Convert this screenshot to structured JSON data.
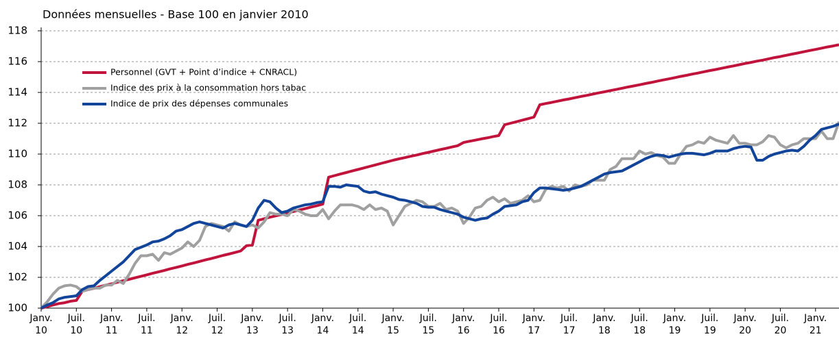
{
  "chart_data": {
    "type": "line",
    "title": "Données mensuelles - Base 100 en janvier 2010",
    "categories": [
      "Janv.\n10",
      null,
      null,
      null,
      null,
      null,
      "Juil.\n10",
      null,
      null,
      null,
      null,
      null,
      "Janv.\n11",
      null,
      null,
      null,
      null,
      null,
      "Juil.\n11",
      null,
      null,
      null,
      null,
      null,
      "Janv.\n12",
      null,
      null,
      null,
      null,
      null,
      "Juil.\n12",
      null,
      null,
      null,
      null,
      null,
      "Janv.\n13",
      null,
      null,
      null,
      null,
      null,
      "Juil.\n13",
      null,
      null,
      null,
      null,
      null,
      "Janv.\n14",
      null,
      null,
      null,
      null,
      null,
      "Juil.\n14",
      null,
      null,
      null,
      null,
      null,
      "Janv.\n15",
      null,
      null,
      null,
      null,
      null,
      "Juil.\n15",
      null,
      null,
      null,
      null,
      null,
      "Janv.\n16",
      null,
      null,
      null,
      null,
      null,
      "Juil.\n16",
      null,
      null,
      null,
      null,
      null,
      "Janv.\n17",
      null,
      null,
      null,
      null,
      null,
      "Juil.\n17",
      null,
      null,
      null,
      null,
      null,
      "Janv.\n18",
      null,
      null,
      null,
      null,
      null,
      "Juil.\n18",
      null,
      null,
      null,
      null,
      null,
      "Janv.\n19",
      null,
      null,
      null,
      null,
      null,
      "Juil.\n19",
      null,
      null,
      null,
      null,
      null,
      "Janv.\n20",
      null,
      null,
      null,
      null,
      null,
      "Juil.\n20",
      null,
      null,
      null,
      null,
      null,
      "Janv.\n21",
      null,
      null,
      null,
      null
    ],
    "series": [
      {
        "name": "Personnel (GVT + Point d’indice + CNRACL)",
        "color": "#c0143c",
        "values": [
          100.0,
          100.1,
          100.2,
          100.3,
          100.35,
          100.45,
          100.5,
          101.1,
          101.2,
          101.29,
          101.39,
          101.49,
          101.58,
          101.68,
          101.78,
          101.87,
          101.97,
          102.06,
          102.16,
          102.26,
          102.35,
          102.45,
          102.55,
          102.64,
          102.74,
          102.84,
          102.93,
          103.03,
          103.13,
          103.22,
          103.32,
          103.42,
          103.51,
          103.61,
          103.71,
          104.05,
          104.1,
          105.7,
          105.8,
          105.9,
          105.99,
          106.08,
          106.18,
          106.27,
          106.37,
          106.46,
          106.56,
          106.65,
          106.75,
          108.5,
          108.6,
          108.7,
          108.8,
          108.9,
          109.0,
          109.1,
          109.2,
          109.3,
          109.4,
          109.5,
          109.6,
          109.69,
          109.77,
          109.86,
          109.94,
          110.03,
          110.11,
          110.2,
          110.29,
          110.37,
          110.46,
          110.54,
          110.75,
          110.83,
          110.9,
          110.98,
          111.05,
          111.13,
          111.2,
          111.9,
          112.0,
          112.1,
          112.2,
          112.3,
          112.4,
          113.2,
          113.28,
          113.35,
          113.43,
          113.51,
          113.58,
          113.66,
          113.74,
          113.81,
          113.89,
          113.97,
          114.04,
          114.12,
          114.19,
          114.27,
          114.35,
          114.42,
          114.5,
          114.58,
          114.65,
          114.73,
          114.81,
          114.88,
          114.96,
          115.04,
          115.11,
          115.19,
          115.26,
          115.34,
          115.42,
          115.49,
          115.57,
          115.65,
          115.72,
          115.8,
          115.88,
          115.95,
          116.03,
          116.1,
          116.18,
          116.26,
          116.33,
          116.41,
          116.49,
          116.56,
          116.64,
          116.72,
          116.79,
          116.87,
          116.95,
          117.02,
          117.1
        ]
      },
      {
        "name": "Indice des prix à la consommation hors tabac",
        "color": "#a0a0a0",
        "values": [
          100.0,
          100.4,
          100.9,
          101.3,
          101.45,
          101.5,
          101.4,
          101.1,
          101.2,
          101.3,
          101.3,
          101.5,
          101.5,
          101.8,
          101.6,
          102.2,
          102.9,
          103.4,
          103.4,
          103.5,
          103.1,
          103.6,
          103.5,
          103.7,
          103.9,
          104.3,
          104.0,
          104.4,
          105.3,
          105.5,
          105.4,
          105.3,
          105.0,
          105.6,
          105.4,
          105.3,
          105.4,
          105.2,
          105.6,
          106.2,
          106.1,
          106.1,
          106.0,
          106.4,
          106.3,
          106.1,
          106.0,
          106.0,
          106.4,
          105.8,
          106.3,
          106.7,
          106.7,
          106.7,
          106.6,
          106.4,
          106.7,
          106.4,
          106.5,
          106.3,
          105.4,
          106.0,
          106.6,
          106.8,
          107.0,
          106.9,
          106.6,
          106.6,
          106.8,
          106.4,
          106.5,
          106.3,
          105.5,
          105.9,
          106.5,
          106.6,
          107.0,
          107.2,
          106.9,
          107.1,
          106.8,
          106.9,
          107.0,
          107.3,
          106.9,
          107.0,
          107.7,
          107.9,
          107.8,
          107.9,
          107.6,
          108.0,
          107.9,
          108.0,
          108.3,
          108.3,
          108.3,
          109.0,
          109.2,
          109.7,
          109.7,
          109.7,
          110.2,
          110.0,
          110.1,
          109.9,
          109.8,
          109.4,
          109.4,
          110.0,
          110.5,
          110.6,
          110.8,
          110.7,
          111.1,
          110.9,
          110.8,
          110.7,
          111.2,
          110.7,
          110.7,
          110.6,
          110.6,
          110.8,
          111.2,
          111.1,
          110.6,
          110.4,
          110.6,
          110.7,
          111.0,
          111.0,
          111.0,
          111.5,
          111.0,
          111.0,
          112.1
        ]
      },
      {
        "name": "Indice de prix des dépenses communales",
        "color": "#12459a",
        "values": [
          100.0,
          100.2,
          100.35,
          100.6,
          100.7,
          100.75,
          100.8,
          101.2,
          101.4,
          101.45,
          101.8,
          102.1,
          102.4,
          102.7,
          103.0,
          103.4,
          103.8,
          103.95,
          104.1,
          104.3,
          104.35,
          104.5,
          104.7,
          105.0,
          105.1,
          105.3,
          105.5,
          105.6,
          105.5,
          105.4,
          105.3,
          105.2,
          105.4,
          105.5,
          105.4,
          105.3,
          105.7,
          106.5,
          107.0,
          106.9,
          106.5,
          106.2,
          106.3,
          106.5,
          106.6,
          106.7,
          106.75,
          106.85,
          106.9,
          107.9,
          107.9,
          107.85,
          108.0,
          107.95,
          107.9,
          107.6,
          107.5,
          107.55,
          107.4,
          107.3,
          107.2,
          107.05,
          107.0,
          106.9,
          106.8,
          106.6,
          106.55,
          106.55,
          106.4,
          106.3,
          106.2,
          106.1,
          105.9,
          105.8,
          105.7,
          105.8,
          105.85,
          106.1,
          106.3,
          106.6,
          106.65,
          106.7,
          106.9,
          107.0,
          107.5,
          107.8,
          107.8,
          107.75,
          107.7,
          107.65,
          107.7,
          107.8,
          107.9,
          108.1,
          108.3,
          108.5,
          108.7,
          108.8,
          108.85,
          108.9,
          109.1,
          109.3,
          109.5,
          109.7,
          109.85,
          109.95,
          109.9,
          109.8,
          109.9,
          110.0,
          110.05,
          110.05,
          110.0,
          109.95,
          110.05,
          110.2,
          110.2,
          110.2,
          110.35,
          110.45,
          110.5,
          110.45,
          109.6,
          109.6,
          109.85,
          110.0,
          110.1,
          110.2,
          110.25,
          110.2,
          110.5,
          110.9,
          111.2,
          111.6,
          111.7,
          111.8,
          111.95
        ]
      }
    ],
    "ylim": [
      100,
      118
    ],
    "yticks": [
      100,
      102,
      104,
      106,
      108,
      110,
      112,
      114,
      116,
      118
    ],
    "grid": true,
    "legend": "upper left"
  }
}
